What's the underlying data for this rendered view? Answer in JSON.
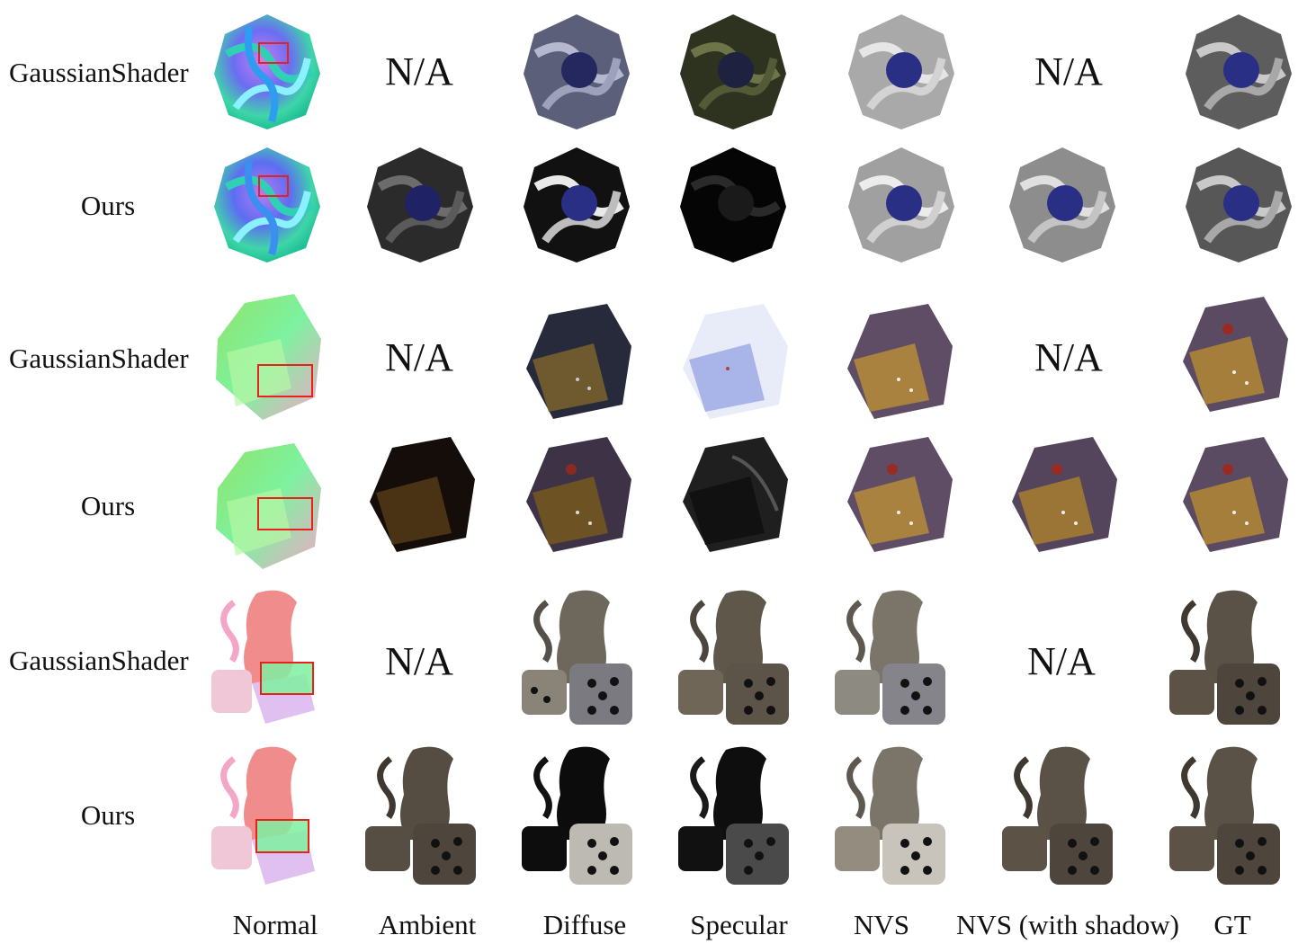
{
  "rows": [
    {
      "label": "GaussianShader"
    },
    {
      "label": "Ours"
    },
    {
      "label": "GaussianShader"
    },
    {
      "label": "Ours"
    },
    {
      "label": "GaussianShader"
    },
    {
      "label": "Ours"
    }
  ],
  "na_text": "N/A",
  "columns": [
    "Normal",
    "Ambient",
    "Diffuse",
    "Specular",
    "NVS",
    "NVS (with shadow)",
    "GT"
  ],
  "colors": {
    "highlight_box": "#e8211b",
    "normal_blue": "#6b6df2",
    "normal_green": "#3ed6a8",
    "normal_pink": "#f3a6c8",
    "sphere_blue": "#2a2f86",
    "metal_gray": "#8a8a8a",
    "bag_purple": "#5f4d66",
    "box_amber": "#a9823f"
  }
}
